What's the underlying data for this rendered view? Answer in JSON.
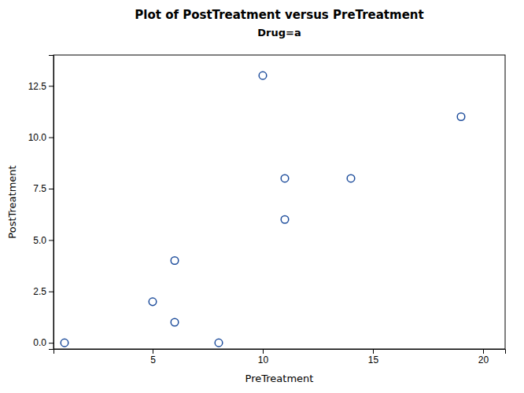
{
  "chart_data": {
    "type": "scatter",
    "title": "Plot of PostTreatment versus PreTreatment",
    "subtitle": "Drug=a",
    "x_label": "PreTreatment",
    "y_label": "PostTreatment",
    "x": [
      1,
      5,
      6,
      6,
      8,
      10,
      11,
      11,
      14,
      19
    ],
    "values": [
      0,
      2,
      4,
      1,
      0,
      13,
      8,
      6,
      8,
      11
    ],
    "xlim": [
      0.5,
      21
    ],
    "ylim": [
      -0.3,
      14.0
    ],
    "xticks": [
      5,
      10,
      15,
      20
    ],
    "yticks": [
      {
        "value": 0.0,
        "label": "0.0"
      },
      2.5,
      {
        "value": 5.0,
        "label": "5.0"
      },
      7.5,
      {
        "value": 10.0,
        "label": "10.0"
      },
      12.5
    ],
    "color": "#1f4e9c",
    "marker": "circle",
    "grid": false
  }
}
